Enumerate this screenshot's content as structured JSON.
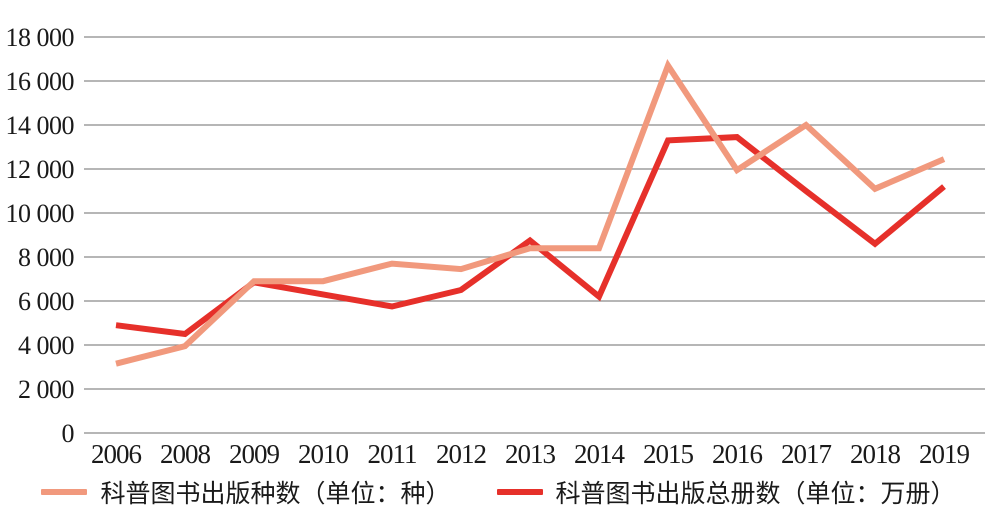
{
  "chart_data": {
    "type": "line",
    "categories": [
      "2006",
      "2008",
      "2009",
      "2010",
      "2011",
      "2012",
      "2013",
      "2014",
      "2015",
      "2016",
      "2017",
      "2018",
      "2019"
    ],
    "series": [
      {
        "name": "科普图书出版种数（单位：种）",
        "color": "#F1997D",
        "values": [
          3150,
          3950,
          6900,
          6900,
          7700,
          7450,
          8400,
          8400,
          16700,
          11950,
          14000,
          11100,
          12450
        ]
      },
      {
        "name": "科普图书出版总册数（单位：万册）",
        "color": "#E6302A",
        "values": [
          4900,
          4500,
          6850,
          6300,
          5750,
          6500,
          8750,
          6200,
          13300,
          13450,
          11000,
          8600,
          11200
        ]
      }
    ],
    "title": "",
    "xlabel": "",
    "ylabel": "",
    "ylim": [
      0,
      18000
    ],
    "yticks": [
      {
        "value": 0,
        "label": "0"
      },
      {
        "value": 2000,
        "label": "2 000"
      },
      {
        "value": 4000,
        "label": "4 000"
      },
      {
        "value": 6000,
        "label": "6 000"
      },
      {
        "value": 8000,
        "label": "8 000"
      },
      {
        "value": 10000,
        "label": "10 000"
      },
      {
        "value": 12000,
        "label": "12 000"
      },
      {
        "value": 14000,
        "label": "14 000"
      },
      {
        "value": 16000,
        "label": "16 000"
      },
      {
        "value": 18000,
        "label": "18 000"
      }
    ],
    "grid": true,
    "grid_color": "#8a8a8a",
    "legend_position": "bottom"
  }
}
